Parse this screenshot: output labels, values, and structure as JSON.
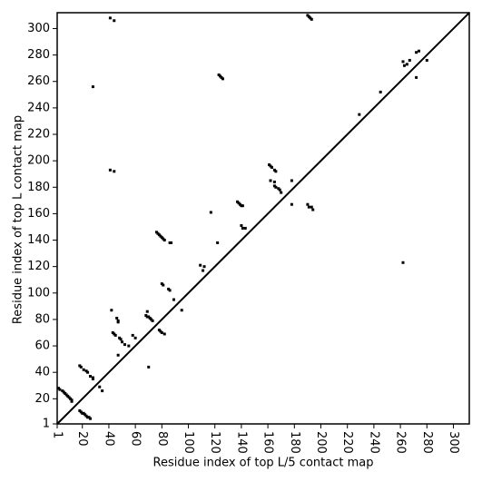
{
  "chart_data": {
    "type": "scatter",
    "x_label": "Residue index of top L/5 contact map",
    "y_label": "Residue index of top L contact map",
    "xlim": [
      1,
      312
    ],
    "ylim": [
      1,
      312
    ],
    "xticks": [
      1,
      20,
      40,
      60,
      80,
      100,
      120,
      140,
      160,
      180,
      200,
      220,
      240,
      260,
      280,
      300
    ],
    "yticks": [
      1,
      20,
      40,
      60,
      80,
      100,
      120,
      140,
      160,
      180,
      200,
      220,
      240,
      260,
      280,
      300
    ],
    "color": "#000000",
    "diagonal": true,
    "x": [
      2,
      3,
      5,
      6,
      7,
      8,
      9,
      10,
      11,
      12,
      12,
      18,
      19,
      20,
      21,
      22,
      23,
      24,
      25,
      26,
      18,
      19,
      21,
      23,
      24,
      26,
      28,
      28,
      33,
      35,
      42,
      43,
      44,
      45,
      46,
      47,
      47,
      48,
      49,
      50,
      52,
      55,
      47,
      58,
      60,
      68,
      69,
      70,
      71,
      72,
      73,
      70,
      69,
      78,
      79,
      80,
      82,
      80,
      81,
      85,
      86,
      89,
      95,
      76,
      77,
      78,
      79,
      80,
      81,
      82,
      86,
      87,
      109,
      112,
      111,
      117,
      122,
      123,
      124,
      125,
      126,
      137,
      138,
      139,
      140,
      141,
      140,
      141,
      143,
      161,
      162,
      163,
      165,
      166,
      162,
      165,
      165,
      166,
      168,
      169,
      170,
      178,
      178,
      190,
      191,
      192,
      193,
      190,
      191,
      193,
      194,
      41,
      44,
      28,
      41,
      44,
      262,
      263,
      265,
      267,
      272,
      274,
      280,
      272,
      262,
      245,
      229
    ],
    "values": [
      28,
      27,
      26,
      25,
      24,
      23,
      22,
      21,
      20,
      19,
      18,
      11,
      10,
      9,
      9,
      8,
      7,
      6,
      6,
      5,
      45,
      44,
      42,
      41,
      40,
      37,
      36,
      35,
      29,
      26,
      87,
      70,
      69,
      68,
      81,
      79,
      78,
      66,
      65,
      63,
      61,
      60,
      53,
      68,
      66,
      83,
      82,
      82,
      81,
      80,
      79,
      44,
      86,
      72,
      71,
      70,
      69,
      107,
      106,
      103,
      102,
      95,
      87,
      146,
      145,
      144,
      143,
      142,
      141,
      140,
      138,
      138,
      121,
      120,
      117,
      161,
      138,
      265,
      264,
      263,
      262,
      169,
      168,
      167,
      166,
      166,
      151,
      149,
      149,
      197,
      196,
      195,
      193,
      192,
      185,
      184,
      181,
      180,
      179,
      178,
      176,
      185,
      167,
      310,
      309,
      308,
      307,
      167,
      165,
      165,
      163,
      308,
      306,
      256,
      193,
      192,
      275,
      272,
      273,
      276,
      282,
      283,
      276,
      263,
      123,
      252,
      235
    ]
  }
}
